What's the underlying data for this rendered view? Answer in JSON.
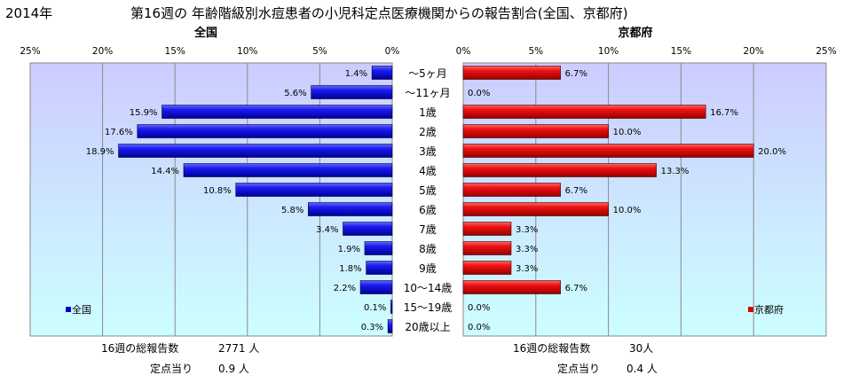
{
  "header": {
    "year": "2014年",
    "title": "第16週の 年齢階級別水痘患者の小児科定点医療機関からの報告割合(全国、京都府)"
  },
  "chart_data": {
    "type": "bar",
    "orientation": "horizontal",
    "categories": [
      "～5ヶ月",
      "～11ヶ月",
      "1歳",
      "2歳",
      "3歳",
      "4歳",
      "5歳",
      "6歳",
      "7歳",
      "8歳",
      "9歳",
      "10～14歳",
      "15～19歳",
      "20歳以上"
    ],
    "xlim": [
      0,
      25
    ],
    "ticks": [
      "0%",
      "5%",
      "10%",
      "15%",
      "20%",
      "25%"
    ],
    "grid": true,
    "panels": [
      {
        "title": "全国",
        "legend": "全国",
        "legend_position": "bottom-left",
        "direction": "reversed",
        "color": "#0000cc",
        "values": [
          1.4,
          5.6,
          15.9,
          17.6,
          18.9,
          14.4,
          10.8,
          5.8,
          3.4,
          1.9,
          1.8,
          2.2,
          0.1,
          0.3
        ],
        "labels": [
          "1.4%",
          "5.6%",
          "15.9%",
          "17.6%",
          "18.9%",
          "14.4%",
          "10.8%",
          "5.8%",
          "3.4%",
          "1.9%",
          "1.8%",
          "2.2%",
          "0.1%",
          "0.3%"
        ]
      },
      {
        "title": "京都府",
        "legend": "京都府",
        "legend_position": "bottom-right",
        "direction": "normal",
        "color": "#dd0000",
        "values": [
          6.7,
          0.0,
          16.7,
          10.0,
          20.0,
          13.3,
          6.7,
          10.0,
          3.3,
          3.3,
          3.3,
          6.7,
          0.0,
          0.0
        ],
        "labels": [
          "6.7%",
          "0.0%",
          "16.7%",
          "10.0%",
          "20.0%",
          "13.3%",
          "6.7%",
          "10.0%",
          "3.3%",
          "3.3%",
          "3.3%",
          "6.7%",
          "0.0%",
          "0.0%"
        ]
      }
    ]
  },
  "footer": {
    "left": {
      "reports_label": "16週の総報告数",
      "reports_value": "2771 人",
      "per_label": "定点当り",
      "per_value": "0.9 人"
    },
    "right": {
      "reports_label": "16週の総報告数",
      "reports_value": "30人",
      "per_label": "定点当り",
      "per_value": "0.4 人"
    }
  }
}
